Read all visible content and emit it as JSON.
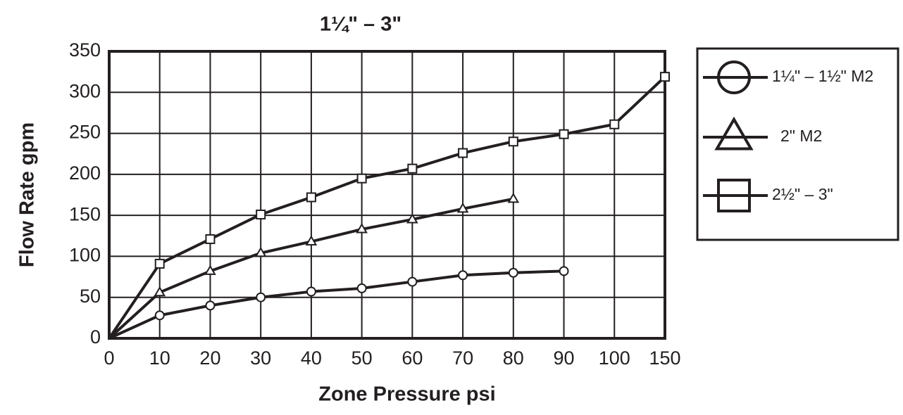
{
  "chart_data": {
    "type": "line",
    "title": "1¼\" – 3\"",
    "x_label": "Zone Pressure psi",
    "y_label": "Flow Rate gpm",
    "categories": [
      "0",
      "10",
      "20",
      "30",
      "40",
      "50",
      "60",
      "70",
      "80",
      "90",
      "100",
      "150"
    ],
    "ylim": [
      0,
      350
    ],
    "yticks": [
      0,
      50,
      100,
      150,
      200,
      250,
      300,
      350
    ],
    "grid": true,
    "legend": "right",
    "series": [
      {
        "name": "1¼\" – 1½\" M2",
        "color": "#231f20",
        "marker": "circle",
        "values": [
          0,
          28,
          40,
          50,
          57,
          61,
          69,
          77,
          80,
          82,
          null,
          null
        ]
      },
      {
        "name": "2\" M2",
        "color": "#231f20",
        "marker": "triangle",
        "values": [
          0,
          56,
          82,
          104,
          118,
          133,
          145,
          158,
          170,
          null,
          null,
          null
        ]
      },
      {
        "name": "2½\" – 3\"",
        "color": "#231f20",
        "marker": "square",
        "values": [
          0,
          91,
          121,
          151,
          172,
          195,
          207,
          226,
          240,
          249,
          261,
          319
        ]
      }
    ]
  }
}
